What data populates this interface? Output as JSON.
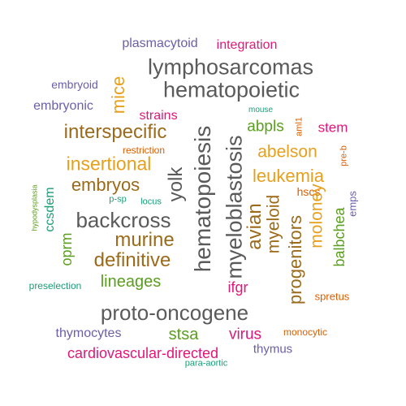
{
  "colors": {
    "gray": "#5a5a5a",
    "brown": "#9b6a1a",
    "orange": "#e6a01e",
    "magenta": "#e0177a",
    "green": "#5a9e1f",
    "purple": "#6b5fa8",
    "teal": "#1b9e77",
    "red_orange": "#d95f02"
  },
  "words": [
    {
      "text": "plasmacytoid",
      "color": "purple"
    },
    {
      "text": "integration",
      "color": "magenta"
    },
    {
      "text": "lymphosarcomas",
      "color": "gray"
    },
    {
      "text": "hematopoietic",
      "color": "gray"
    },
    {
      "text": "embryoid",
      "color": "purple"
    },
    {
      "text": "mice",
      "color": "orange"
    },
    {
      "text": "embryonic",
      "color": "purple"
    },
    {
      "text": "strains",
      "color": "magenta"
    },
    {
      "text": "mouse",
      "color": "teal"
    },
    {
      "text": "aml1",
      "color": "red_orange"
    },
    {
      "text": "interspecific",
      "color": "brown"
    },
    {
      "text": "hematopoiesis",
      "color": "gray"
    },
    {
      "text": "abpls",
      "color": "green"
    },
    {
      "text": "stem",
      "color": "magenta"
    },
    {
      "text": "restriction",
      "color": "red_orange"
    },
    {
      "text": "insertional",
      "color": "orange"
    },
    {
      "text": "myeloblastosis",
      "color": "gray"
    },
    {
      "text": "abelson",
      "color": "orange"
    },
    {
      "text": "pre-b",
      "color": "red_orange"
    },
    {
      "text": "yolk",
      "color": "gray"
    },
    {
      "text": "embryos",
      "color": "brown"
    },
    {
      "text": "leukemia",
      "color": "orange"
    },
    {
      "text": "hypodysplasia",
      "color": "green"
    },
    {
      "text": "ccsdem",
      "color": "teal"
    },
    {
      "text": "p-sp",
      "color": "teal"
    },
    {
      "text": "locus",
      "color": "teal"
    },
    {
      "text": "hscs",
      "color": "red_orange"
    },
    {
      "text": "emps",
      "color": "purple"
    },
    {
      "text": "backcross",
      "color": "gray"
    },
    {
      "text": "avian",
      "color": "brown"
    },
    {
      "text": "myeloid",
      "color": "brown"
    },
    {
      "text": "moloney",
      "color": "orange"
    },
    {
      "text": "balbchea",
      "color": "green"
    },
    {
      "text": "murine",
      "color": "brown"
    },
    {
      "text": "oprm",
      "color": "green"
    },
    {
      "text": "definitive",
      "color": "brown"
    },
    {
      "text": "progenitors",
      "color": "brown"
    },
    {
      "text": "lineages",
      "color": "green"
    },
    {
      "text": "ifgr",
      "color": "magenta"
    },
    {
      "text": "preselection",
      "color": "teal"
    },
    {
      "text": "spretus",
      "color": "red_orange"
    },
    {
      "text": "proto-oncogene",
      "color": "gray"
    },
    {
      "text": "thymocytes",
      "color": "purple"
    },
    {
      "text": "stsa",
      "color": "green"
    },
    {
      "text": "virus",
      "color": "magenta"
    },
    {
      "text": "monocytic",
      "color": "red_orange"
    },
    {
      "text": "cardiovascular-directed",
      "color": "magenta"
    },
    {
      "text": "thymus",
      "color": "purple"
    },
    {
      "text": "para-aortic",
      "color": "teal"
    }
  ]
}
